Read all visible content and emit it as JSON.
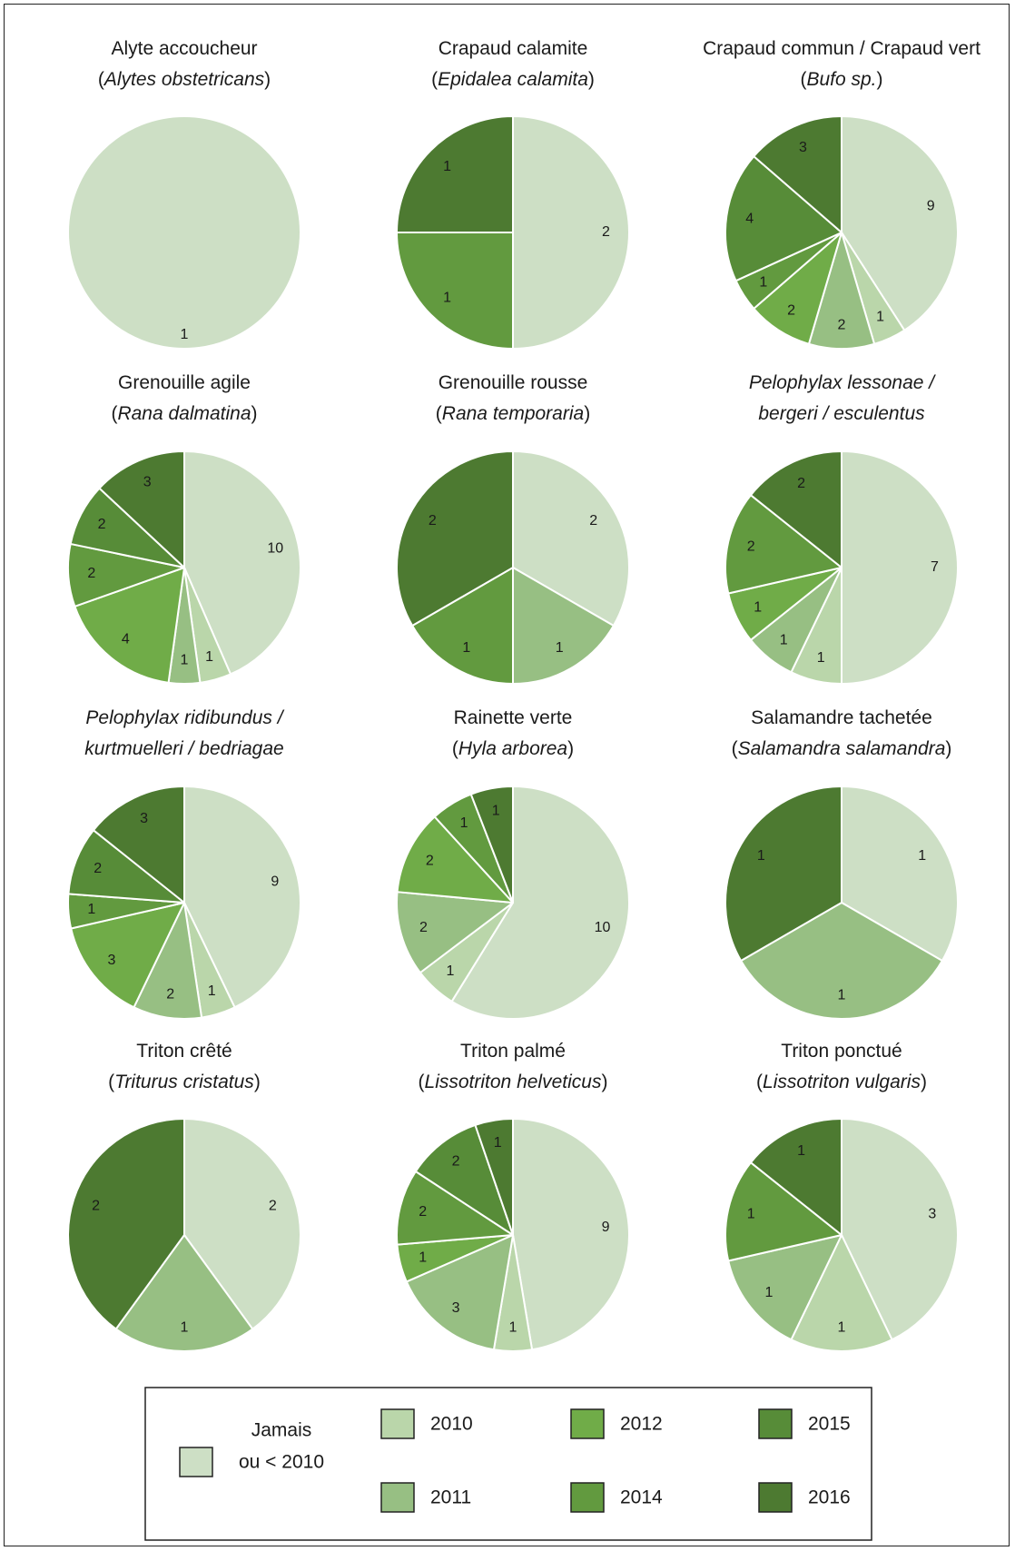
{
  "chart_data": {
    "type": "pie",
    "legend": {
      "position": "bottom",
      "entries": [
        {
          "key": "jamais",
          "label_lines": [
            "Jamais",
            "ou < 2010"
          ],
          "color": "#cddfc5"
        },
        {
          "key": "y2010",
          "label": "2010",
          "color": "#bad6aa"
        },
        {
          "key": "y2011",
          "label": "2011",
          "color": "#97bf83"
        },
        {
          "key": "y2012",
          "label": "2012",
          "color": "#70ac48"
        },
        {
          "key": "y2014",
          "label": "2014",
          "color": "#629a3f"
        },
        {
          "key": "y2015",
          "label": "2015",
          "color": "#578c38"
        },
        {
          "key": "y2016",
          "label": "2016",
          "color": "#4d7a31"
        }
      ]
    },
    "category_order": [
      "jamais",
      "y2010",
      "y2011",
      "y2012",
      "y2014",
      "y2015",
      "y2016"
    ],
    "panels": [
      {
        "title": [
          [
            {
              "t": "Alyte accoucheur",
              "i": false
            }
          ],
          [
            {
              "t": "(",
              "i": false
            },
            {
              "t": "Alytes obstetricans",
              "i": true
            },
            {
              "t": ")",
              "i": false
            }
          ]
        ],
        "slices": [
          {
            "cat": "jamais",
            "value": 1
          }
        ]
      },
      {
        "title": [
          [
            {
              "t": "Crapaud calamite",
              "i": false
            }
          ],
          [
            {
              "t": "(",
              "i": false
            },
            {
              "t": "Epidalea calamita",
              "i": true
            },
            {
              "t": ")",
              "i": false
            }
          ]
        ],
        "slices": [
          {
            "cat": "jamais",
            "value": 2
          },
          {
            "cat": "y2014",
            "value": 1
          },
          {
            "cat": "y2016",
            "value": 1
          }
        ]
      },
      {
        "title": [
          [
            {
              "t": "Crapaud commun / Crapaud vert",
              "i": false
            }
          ],
          [
            {
              "t": "(",
              "i": false
            },
            {
              "t": "Bufo sp.",
              "i": true
            },
            {
              "t": ")",
              "i": false
            }
          ]
        ],
        "slices": [
          {
            "cat": "jamais",
            "value": 9
          },
          {
            "cat": "y2010",
            "value": 1
          },
          {
            "cat": "y2011",
            "value": 2
          },
          {
            "cat": "y2012",
            "value": 2
          },
          {
            "cat": "y2014",
            "value": 1
          },
          {
            "cat": "y2015",
            "value": 4
          },
          {
            "cat": "y2016",
            "value": 3
          }
        ]
      },
      {
        "title": [
          [
            {
              "t": "Grenouille agile",
              "i": false
            }
          ],
          [
            {
              "t": "(",
              "i": false
            },
            {
              "t": "Rana dalmatina",
              "i": true
            },
            {
              "t": ")",
              "i": false
            }
          ]
        ],
        "slices": [
          {
            "cat": "jamais",
            "value": 10
          },
          {
            "cat": "y2010",
            "value": 1
          },
          {
            "cat": "y2011",
            "value": 1
          },
          {
            "cat": "y2012",
            "value": 4
          },
          {
            "cat": "y2014",
            "value": 2
          },
          {
            "cat": "y2015",
            "value": 2
          },
          {
            "cat": "y2016",
            "value": 3
          }
        ]
      },
      {
        "title": [
          [
            {
              "t": "Grenouille rousse",
              "i": false
            }
          ],
          [
            {
              "t": "(",
              "i": false
            },
            {
              "t": "Rana temporaria",
              "i": true
            },
            {
              "t": ")",
              "i": false
            }
          ]
        ],
        "slices": [
          {
            "cat": "jamais",
            "value": 2
          },
          {
            "cat": "y2011",
            "value": 1
          },
          {
            "cat": "y2014",
            "value": 1
          },
          {
            "cat": "y2016",
            "value": 2
          }
        ]
      },
      {
        "title": [
          [
            {
              "t": "Pelophylax lessonae /",
              "i": true
            }
          ],
          [
            {
              "t": "bergeri / esculentus",
              "i": true
            }
          ]
        ],
        "slices": [
          {
            "cat": "jamais",
            "value": 7
          },
          {
            "cat": "y2010",
            "value": 1
          },
          {
            "cat": "y2011",
            "value": 1
          },
          {
            "cat": "y2012",
            "value": 1
          },
          {
            "cat": "y2014",
            "value": 2
          },
          {
            "cat": "y2016",
            "value": 2
          }
        ]
      },
      {
        "title": [
          [
            {
              "t": "Pelophylax ridibundus /",
              "i": true
            }
          ],
          [
            {
              "t": "kurtmuelleri / bedriagae",
              "i": true
            }
          ]
        ],
        "slices": [
          {
            "cat": "jamais",
            "value": 9
          },
          {
            "cat": "y2010",
            "value": 1
          },
          {
            "cat": "y2011",
            "value": 2
          },
          {
            "cat": "y2012",
            "value": 3
          },
          {
            "cat": "y2014",
            "value": 1
          },
          {
            "cat": "y2015",
            "value": 2
          },
          {
            "cat": "y2016",
            "value": 3
          }
        ]
      },
      {
        "title": [
          [
            {
              "t": "Rainette verte",
              "i": false
            }
          ],
          [
            {
              "t": "(",
              "i": false
            },
            {
              "t": "Hyla arborea",
              "i": true
            },
            {
              "t": ")",
              "i": false
            }
          ]
        ],
        "slices": [
          {
            "cat": "jamais",
            "value": 10
          },
          {
            "cat": "y2010",
            "value": 1
          },
          {
            "cat": "y2011",
            "value": 2
          },
          {
            "cat": "y2012",
            "value": 2
          },
          {
            "cat": "y2014",
            "value": 1
          },
          {
            "cat": "y2016",
            "value": 1
          }
        ]
      },
      {
        "title": [
          [
            {
              "t": "Salamandre tachetée",
              "i": false
            }
          ],
          [
            {
              "t": "(",
              "i": false
            },
            {
              "t": "Salamandra salamandra",
              "i": true
            },
            {
              "t": ")",
              "i": false
            }
          ]
        ],
        "slices": [
          {
            "cat": "jamais",
            "value": 1
          },
          {
            "cat": "y2011",
            "value": 1
          },
          {
            "cat": "y2016",
            "value": 1
          }
        ]
      },
      {
        "title": [
          [
            {
              "t": "Triton crêté",
              "i": false
            }
          ],
          [
            {
              "t": "(",
              "i": false
            },
            {
              "t": "Triturus cristatus",
              "i": true
            },
            {
              "t": ")",
              "i": false
            }
          ]
        ],
        "slices": [
          {
            "cat": "jamais",
            "value": 2
          },
          {
            "cat": "y2011",
            "value": 1
          },
          {
            "cat": "y2016",
            "value": 2
          }
        ]
      },
      {
        "title": [
          [
            {
              "t": "Triton palmé",
              "i": false
            }
          ],
          [
            {
              "t": "(",
              "i": false
            },
            {
              "t": "Lissotriton helveticus",
              "i": true
            },
            {
              "t": ")",
              "i": false
            }
          ]
        ],
        "slices": [
          {
            "cat": "jamais",
            "value": 9
          },
          {
            "cat": "y2010",
            "value": 1
          },
          {
            "cat": "y2011",
            "value": 3
          },
          {
            "cat": "y2012",
            "value": 1
          },
          {
            "cat": "y2014",
            "value": 2
          },
          {
            "cat": "y2015",
            "value": 2
          },
          {
            "cat": "y2016",
            "value": 1
          }
        ]
      },
      {
        "title": [
          [
            {
              "t": "Triton ponctué",
              "i": false
            }
          ],
          [
            {
              "t": "(",
              "i": false
            },
            {
              "t": "Lissotriton vulgaris",
              "i": true
            },
            {
              "t": ")",
              "i": false
            }
          ]
        ],
        "slices": [
          {
            "cat": "jamais",
            "value": 3
          },
          {
            "cat": "y2010",
            "value": 1
          },
          {
            "cat": "y2011",
            "value": 1
          },
          {
            "cat": "y2014",
            "value": 1
          },
          {
            "cat": "y2016",
            "value": 1
          }
        ]
      }
    ]
  }
}
